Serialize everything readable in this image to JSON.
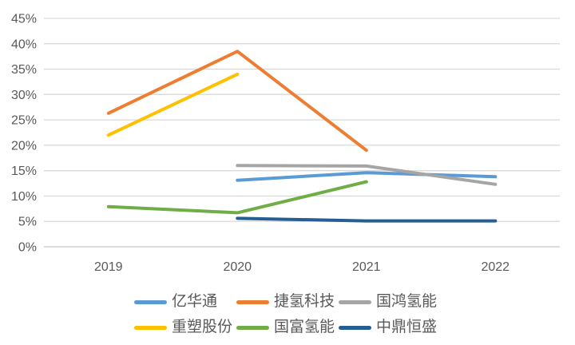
{
  "chart_data": {
    "type": "line",
    "categories": [
      "2019",
      "2020",
      "2021",
      "2022"
    ],
    "series": [
      {
        "name": "亿华通",
        "color": "#5B9BD5",
        "values": [
          null,
          13.1,
          14.6,
          13.8
        ]
      },
      {
        "name": "捷氢科技",
        "color": "#ED7D31",
        "values": [
          26.3,
          38.5,
          19.0,
          null
        ]
      },
      {
        "name": "国鸿氢能",
        "color": "#A5A5A5",
        "values": [
          null,
          16.0,
          15.9,
          12.3
        ]
      },
      {
        "name": "重塑股份",
        "color": "#FFC000",
        "values": [
          22.0,
          34.0,
          null,
          null
        ]
      },
      {
        "name": "国富氢能",
        "color": "#70AD47",
        "values": [
          7.9,
          6.7,
          12.8,
          null
        ]
      },
      {
        "name": "中鼎恒盛",
        "color": "#255E91",
        "values": [
          null,
          5.6,
          5.1,
          5.1
        ]
      }
    ],
    "ylim": [
      0,
      45
    ],
    "ytick_step": 5,
    "ytick_labels": [
      "0%",
      "5%",
      "10%",
      "15%",
      "20%",
      "25%",
      "30%",
      "35%",
      "40%",
      "45%"
    ],
    "grid": true,
    "legend_position": "bottom",
    "legend_rows": [
      [
        "亿华通",
        "捷氢科技",
        "国鸿氢能"
      ],
      [
        "重塑股份",
        "国富氢能",
        "中鼎恒盛"
      ]
    ]
  },
  "colors": {
    "grid": "#D9D9D9",
    "axis": "#C6C6C6",
    "tick_text": "#595959",
    "background": "#FFFFFF"
  }
}
